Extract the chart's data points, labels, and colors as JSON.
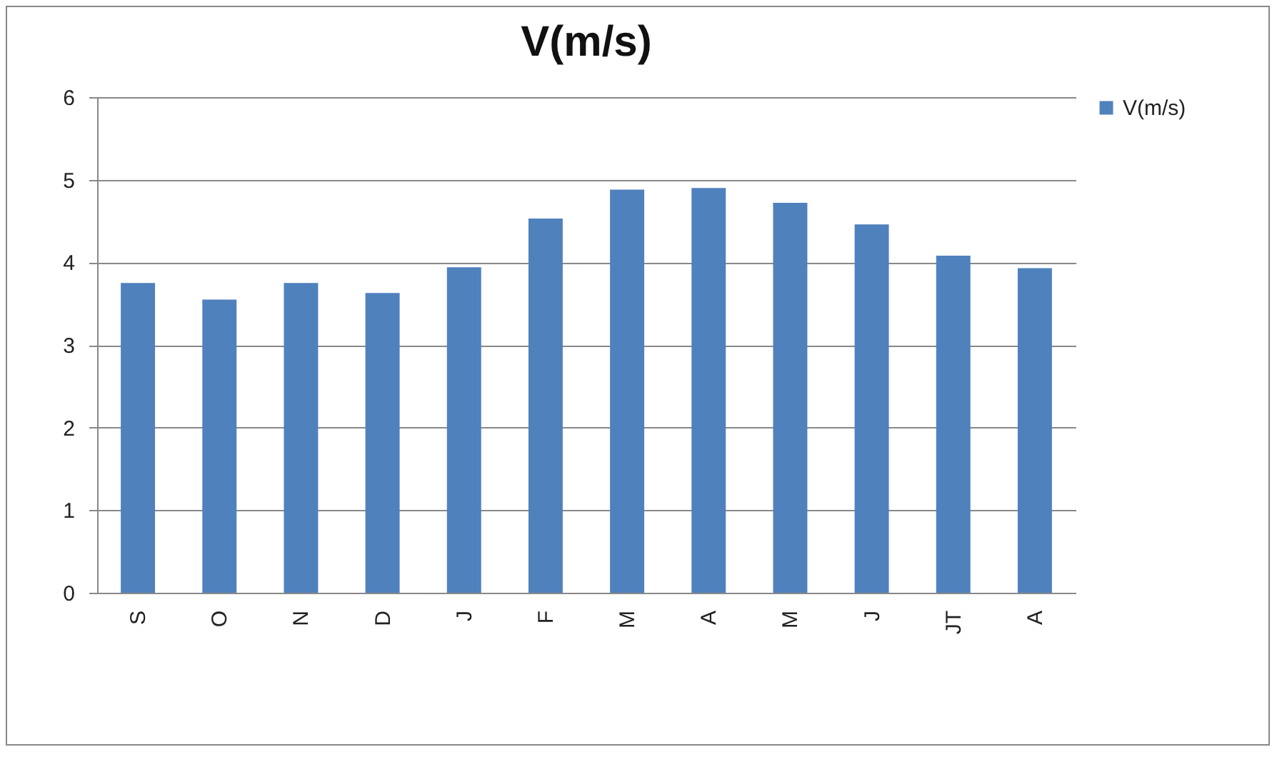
{
  "chart_data": {
    "type": "bar",
    "title": "V(m/s)",
    "categories": [
      "S",
      "O",
      "N",
      "D",
      "J",
      "F",
      "M",
      "A",
      "M",
      "J",
      "JT",
      "A"
    ],
    "series": [
      {
        "name": "V(m/s)",
        "color": "#4f81bd",
        "values": [
          3.75,
          3.55,
          3.75,
          3.63,
          3.94,
          4.53,
          4.88,
          4.9,
          4.72,
          4.46,
          4.08,
          3.93
        ]
      }
    ],
    "ylim": [
      0,
      6
    ],
    "yticks": [
      0,
      1,
      2,
      3,
      4,
      5,
      6
    ],
    "grid": "y",
    "legend": "right"
  }
}
